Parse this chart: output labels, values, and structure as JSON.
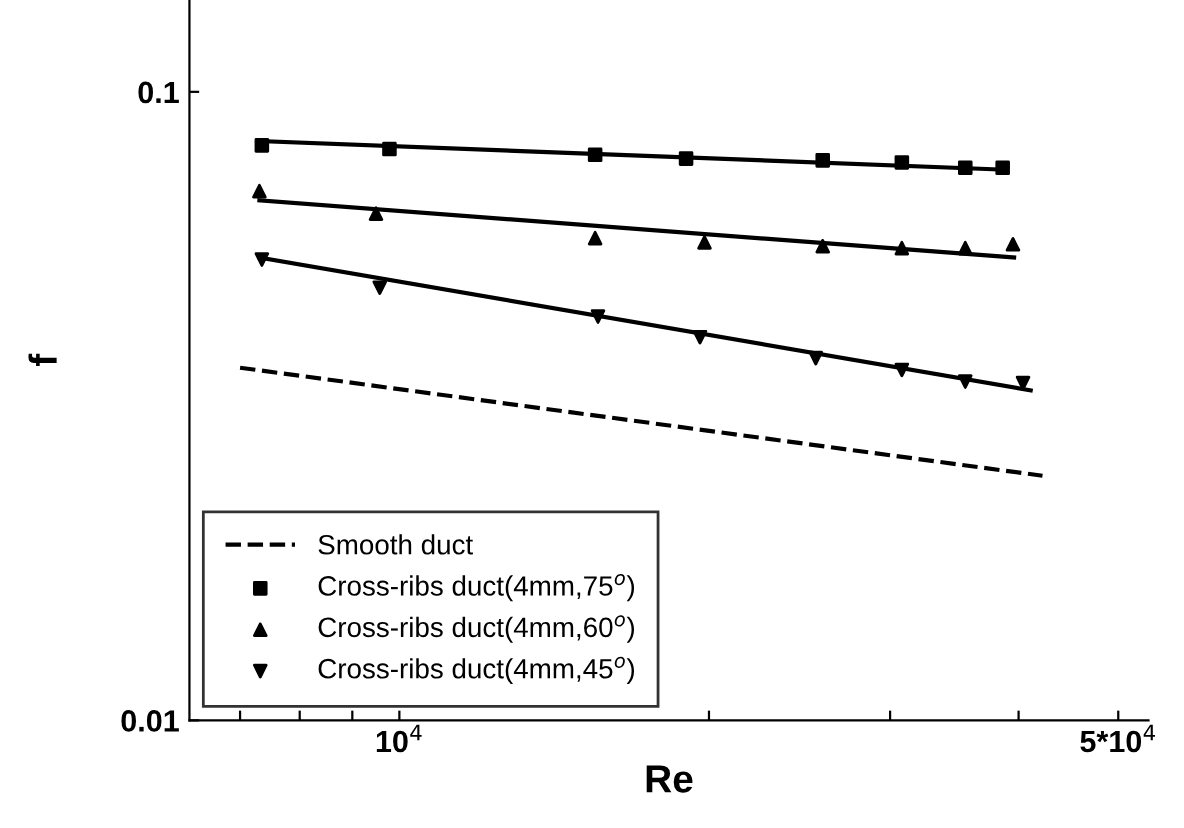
{
  "chart_data": {
    "type": "scatter",
    "xlabel": "Re",
    "ylabel": "f",
    "log": "xy",
    "grid": false,
    "legend": "bottom left",
    "xlim": [
      6250,
      53500
    ],
    "ylim": [
      0.01,
      0.14
    ],
    "xticks": [
      {
        "value": 7000,
        "label": null
      },
      {
        "value": 8000,
        "label": null
      },
      {
        "value": 9000,
        "label": null
      },
      {
        "value": 10000,
        "label": "10$^{4}$"
      },
      {
        "value": 20000,
        "label": null
      },
      {
        "value": 30000,
        "label": null
      },
      {
        "value": 40000,
        "label": null
      },
      {
        "value": 50000,
        "label": "5*10$^{4}$"
      }
    ],
    "yticks": [
      0.01,
      0.1
    ],
    "series": [
      {
        "name": "Smooth duct",
        "type": "line",
        "line_style": "dashed",
        "marker": "none",
        "color": "#000000",
        "x": [
          7000,
          42200
        ],
        "values": [
          0.0364,
          0.0245
        ]
      },
      {
        "name": "Cross-ribs duct(4mm,75$^{o}$)",
        "marker": "square",
        "color": "#000000",
        "x": [
          7350,
          9780,
          15500,
          19000,
          25800,
          30800,
          35500,
          38600
        ],
        "values": [
          0.0822,
          0.0811,
          0.0794,
          0.0783,
          0.0778,
          0.0772,
          0.0757,
          0.0757
        ]
      },
      {
        "name": "Cross-ribs duct(4mm,60$^{o}$)",
        "marker": "triangle",
        "color": "#000000",
        "x": [
          7310,
          9490,
          15500,
          19800,
          25800,
          30800,
          35500,
          39500
        ],
        "values": [
          0.0695,
          0.064,
          0.0585,
          0.0576,
          0.0568,
          0.0564,
          0.0564,
          0.0572
        ]
      },
      {
        "name": "Cross-ribs duct(4mm,45$^{o}$)",
        "marker": "triangle_down",
        "color": "#000000",
        "x": [
          7350,
          9570,
          15600,
          19600,
          25400,
          30800,
          35500,
          40400
        ],
        "values": [
          0.0541,
          0.0488,
          0.0439,
          0.0407,
          0.0377,
          0.0361,
          0.0346,
          0.0344
        ]
      },
      {
        "type": "line",
        "line_style": "solid",
        "marker": "none",
        "color": "#000000",
        "x": [
          7310,
          38700
        ],
        "values": [
          0.0835,
          0.0752
        ]
      },
      {
        "type": "line",
        "line_style": "solid",
        "marker": "none",
        "color": "#000000",
        "x": [
          7310,
          39600
        ],
        "values": [
          0.0672,
          0.0545
        ]
      },
      {
        "type": "line",
        "line_style": "solid",
        "marker": "none",
        "color": "#000000",
        "x": [
          7310,
          41100
        ],
        "values": [
          0.0545,
          0.0335
        ]
      }
    ]
  }
}
